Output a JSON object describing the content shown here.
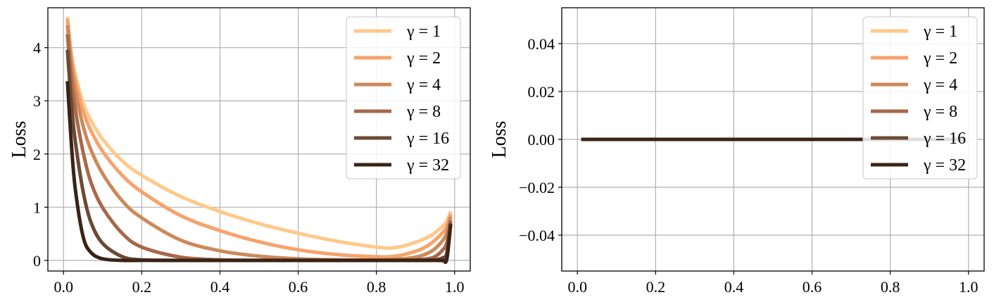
{
  "chart_data": [
    {
      "type": "line",
      "ylabel": "Loss",
      "xlabel": "",
      "xlim": [
        -0.04,
        1.04
      ],
      "ylim": [
        -0.2,
        4.75
      ],
      "xticks": [
        0.0,
        0.2,
        0.4,
        0.6,
        0.8,
        1.0
      ],
      "xtick_labels": [
        "0.0",
        "0.2",
        "0.4",
        "0.6",
        "0.8",
        "1.0"
      ],
      "yticks": [
        0,
        1,
        2,
        3,
        4
      ],
      "ytick_labels": [
        "0",
        "1",
        "2",
        "3",
        "4"
      ],
      "grid": true,
      "legend_position": "top-right",
      "x": [
        0.01,
        0.02,
        0.03,
        0.05,
        0.07,
        0.1,
        0.15,
        0.2,
        0.3,
        0.4,
        0.5,
        0.6,
        0.7,
        0.8,
        0.85,
        0.9,
        0.93,
        0.95,
        0.97,
        0.98,
        0.99
      ],
      "series": [
        {
          "name": "γ = 1",
          "color": "#ffc98a",
          "values": [
            4.58,
            3.9,
            3.5,
            2.96,
            2.63,
            2.28,
            1.87,
            1.6,
            1.2,
            0.92,
            0.69,
            0.51,
            0.36,
            0.25,
            0.24,
            0.34,
            0.43,
            0.52,
            0.65,
            0.74,
            0.92
          ]
        },
        {
          "name": "γ = 2",
          "color": "#f7a26c",
          "values": [
            4.54,
            3.83,
            3.4,
            2.81,
            2.44,
            2.05,
            1.6,
            1.29,
            0.84,
            0.56,
            0.35,
            0.2,
            0.11,
            0.07,
            0.08,
            0.17,
            0.27,
            0.38,
            0.53,
            0.64,
            0.87
          ]
        },
        {
          "name": "γ = 4",
          "color": "#cc8a5a",
          "values": [
            4.42,
            3.68,
            3.2,
            2.53,
            2.08,
            1.63,
            1.12,
            0.8,
            0.38,
            0.18,
            0.08,
            0.03,
            0.01,
            0.01,
            0.02,
            0.06,
            0.13,
            0.22,
            0.38,
            0.52,
            0.82
          ]
        },
        {
          "name": "γ = 8",
          "color": "#a8684a",
          "values": [
            4.25,
            3.4,
            2.84,
            2.04,
            1.47,
            0.99,
            0.51,
            0.25,
            0.06,
            0.01,
            0.0,
            0.0,
            0.0,
            0.0,
            0.0,
            0.01,
            0.03,
            0.07,
            0.2,
            0.33,
            0.75
          ]
        },
        {
          "name": "γ = 16",
          "color": "#6b4a34",
          "values": [
            3.96,
            2.95,
            2.25,
            1.3,
            0.72,
            0.32,
            0.07,
            0.01,
            0.0,
            0.0,
            0.0,
            0.0,
            0.0,
            0.0,
            0.0,
            0.0,
            0.0,
            0.01,
            0.05,
            0.14,
            0.7
          ]
        },
        {
          "name": "γ = 32",
          "color": "#3a2316",
          "values": [
            3.37,
            2.2,
            1.35,
            0.45,
            0.15,
            0.03,
            0.0,
            0.0,
            0.0,
            0.0,
            0.0,
            0.0,
            0.0,
            0.0,
            0.0,
            0.0,
            0.0,
            0.0,
            0.0,
            0.02,
            0.68
          ]
        }
      ]
    },
    {
      "type": "line",
      "ylabel": "Loss",
      "xlabel": "",
      "xlim": [
        -0.04,
        1.04
      ],
      "ylim": [
        -0.055,
        0.055
      ],
      "xticks": [
        0.0,
        0.2,
        0.4,
        0.6,
        0.8,
        1.0
      ],
      "xtick_labels": [
        "0.0",
        "0.2",
        "0.4",
        "0.6",
        "0.8",
        "1.0"
      ],
      "yticks": [
        -0.04,
        -0.02,
        0.0,
        0.02,
        0.04
      ],
      "ytick_labels": [
        "−0.04",
        "−0.02",
        "0.00",
        "0.02",
        "0.04"
      ],
      "grid": true,
      "legend_position": "top-right",
      "x": [
        0.01,
        0.99
      ],
      "series": [
        {
          "name": "γ = 1",
          "color": "#ffc98a",
          "values": [
            0,
            0
          ]
        },
        {
          "name": "γ = 2",
          "color": "#f7a26c",
          "values": [
            0,
            0
          ]
        },
        {
          "name": "γ = 4",
          "color": "#cc8a5a",
          "values": [
            0,
            0
          ]
        },
        {
          "name": "γ = 8",
          "color": "#a8684a",
          "values": [
            0,
            0
          ]
        },
        {
          "name": "γ = 16",
          "color": "#6b4a34",
          "values": [
            0,
            0
          ]
        },
        {
          "name": "γ = 32",
          "color": "#3a2316",
          "values": [
            0,
            0
          ]
        }
      ]
    }
  ]
}
